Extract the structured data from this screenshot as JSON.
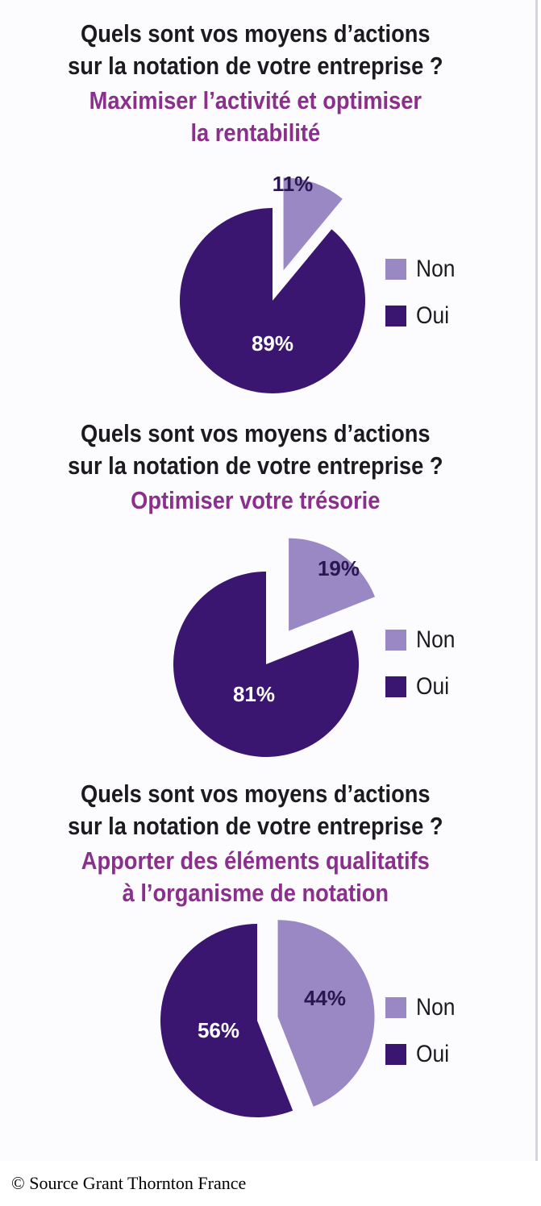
{
  "colors": {
    "non": "#9a88c4",
    "oui": "#3b1670",
    "subtitle": "#8a2f8c",
    "label": "#ffffff"
  },
  "legend": {
    "non": "Non",
    "oui": "Oui"
  },
  "source": "© Source Grant Thornton France",
  "chart_data": [
    {
      "type": "pie",
      "title": "Quels sont vos moyens d’actions\nsur la notation de votre entreprise ?",
      "subtitle": "Maximiser l’activité et optimiser\nla rentabilité",
      "slices": [
        {
          "name": "Non",
          "value": 11,
          "label": "11%",
          "exploded": true
        },
        {
          "name": "Oui",
          "value": 89,
          "label": "89%",
          "exploded": false
        }
      ],
      "legend_position": "right"
    },
    {
      "type": "pie",
      "title": "Quels sont vos moyens d’actions\nsur la notation de votre entreprise ?",
      "subtitle": "Optimiser votre trésorie",
      "slices": [
        {
          "name": "Non",
          "value": 19,
          "label": "19%",
          "exploded": true
        },
        {
          "name": "Oui",
          "value": 81,
          "label": "81%",
          "exploded": false
        }
      ],
      "legend_position": "right"
    },
    {
      "type": "pie",
      "title": "Quels sont vos moyens d’actions\nsur la notation de votre entreprise ?",
      "subtitle": "Apporter des éléments qualitatifs\nà l’organisme de notation",
      "slices": [
        {
          "name": "Non",
          "value": 44,
          "label": "44%",
          "exploded": true
        },
        {
          "name": "Oui",
          "value": 56,
          "label": "56%",
          "exploded": false
        }
      ],
      "legend_position": "right"
    }
  ]
}
